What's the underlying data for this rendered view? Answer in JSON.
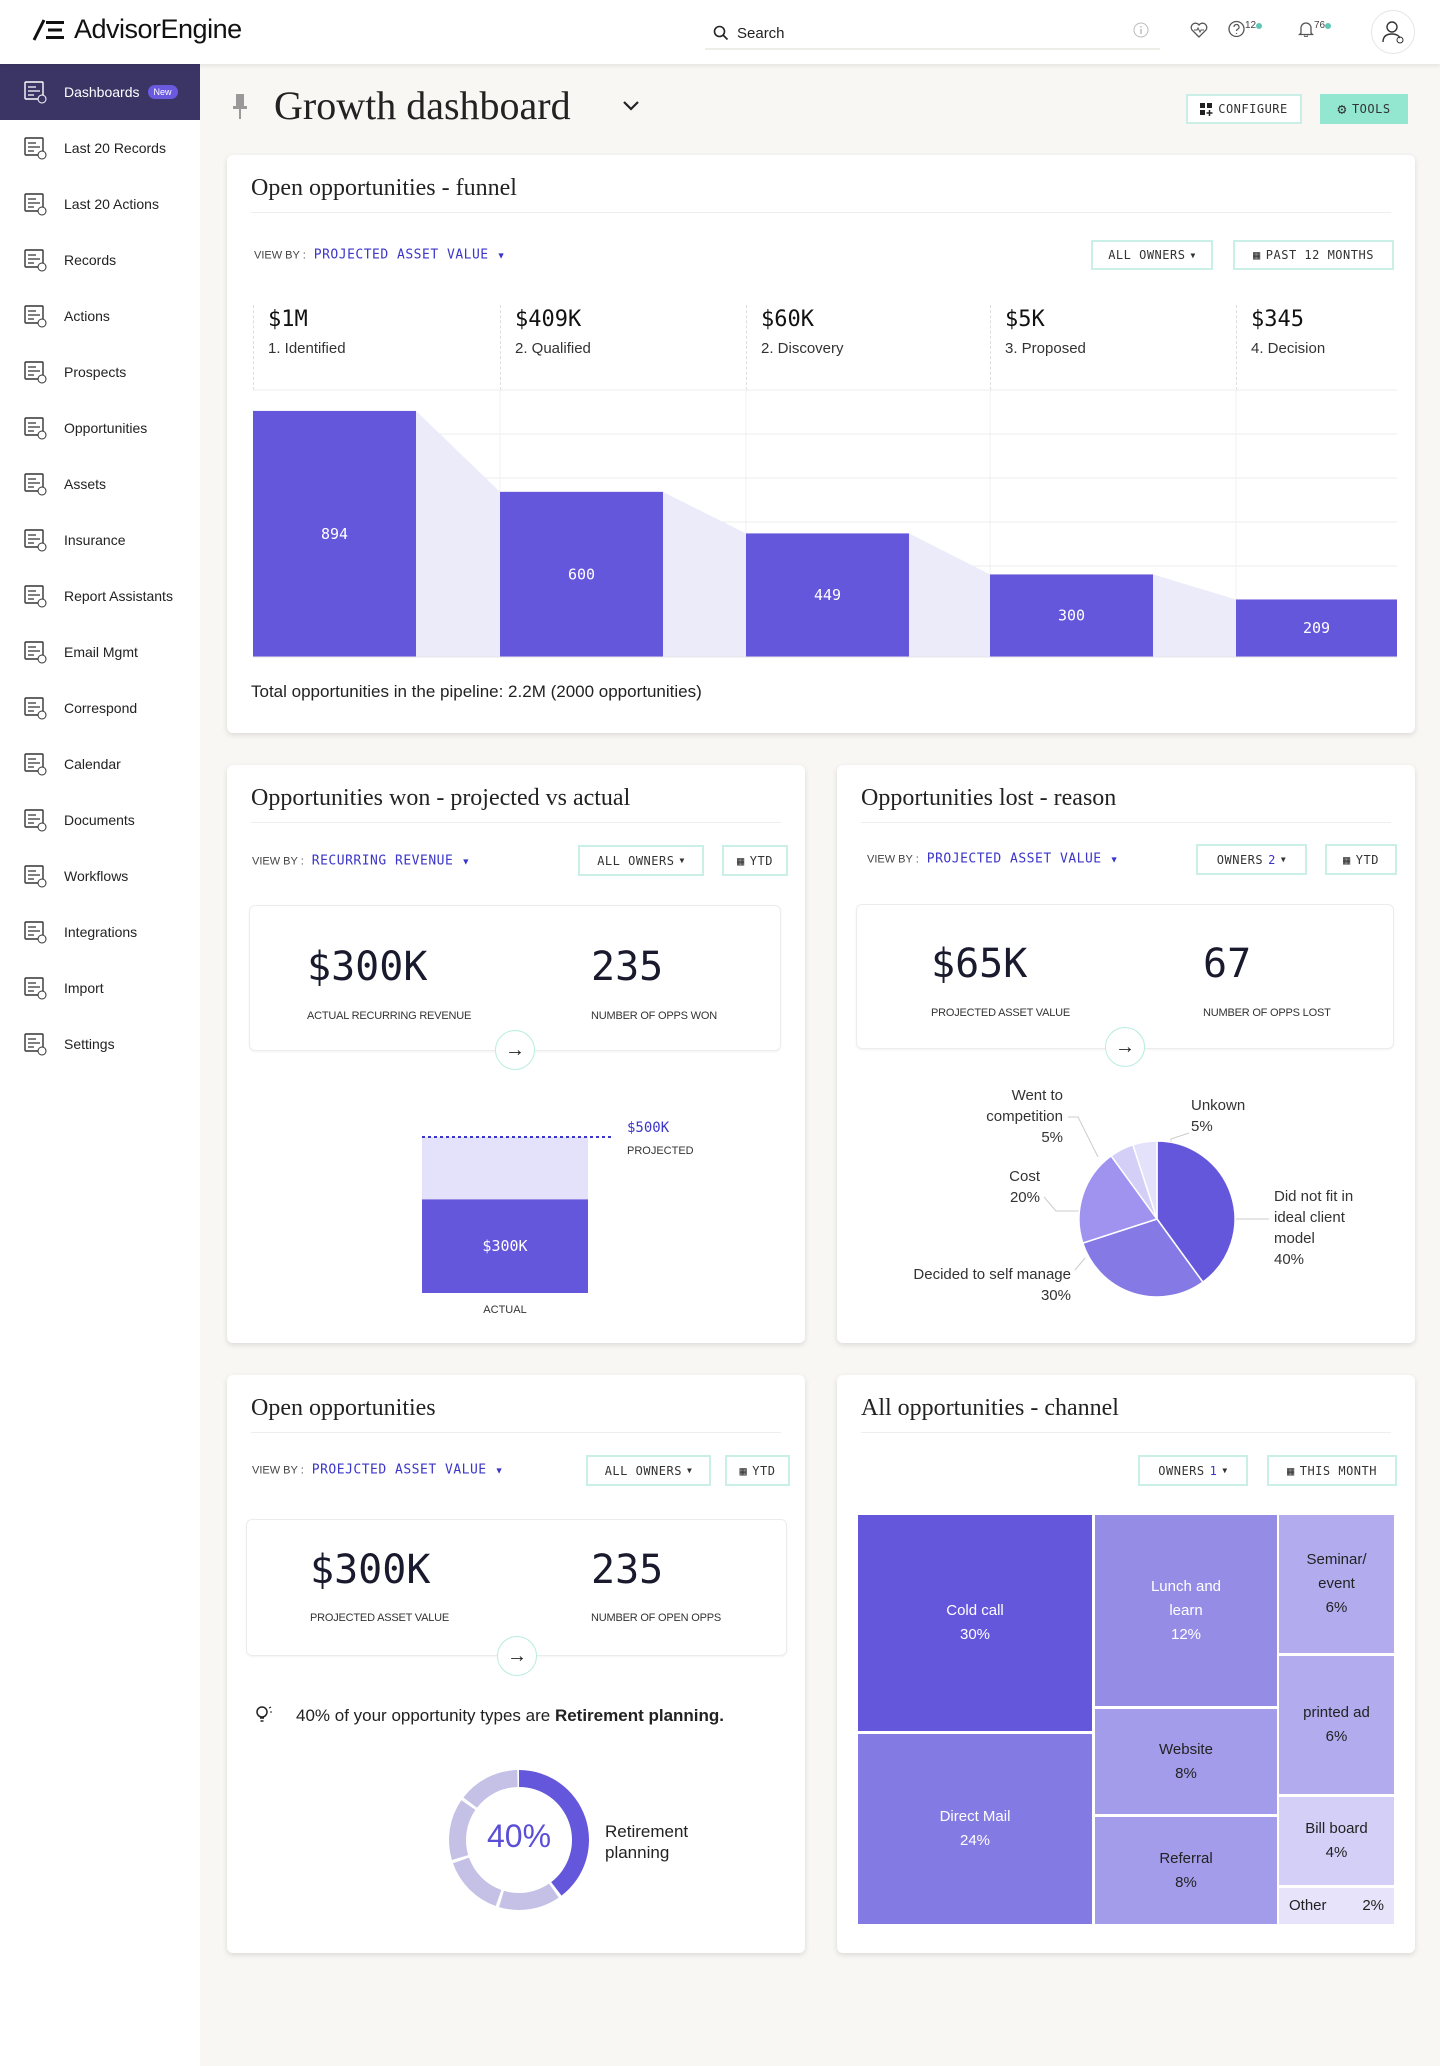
{
  "header": {
    "brand": "AdvisorEngine",
    "search_placeholder": "Search",
    "help_count": "12",
    "notification_count": "76"
  },
  "sidebar": {
    "items": [
      {
        "label": "Dashboards",
        "badge": "New",
        "icon": "dashboard-icon",
        "active": true
      },
      {
        "label": "Last 20 Records",
        "icon": "records-history-icon"
      },
      {
        "label": "Last 20 Actions",
        "icon": "actions-history-icon"
      },
      {
        "label": "Records",
        "icon": "records-icon"
      },
      {
        "label": "Actions",
        "icon": "check-icon"
      },
      {
        "label": "Prospects",
        "icon": "prospects-icon"
      },
      {
        "label": "Opportunities",
        "icon": "opportunities-icon"
      },
      {
        "label": "Assets",
        "icon": "assets-icon"
      },
      {
        "label": "Insurance",
        "icon": "umbrella-icon"
      },
      {
        "label": "Report Assistants",
        "icon": "report-icon"
      },
      {
        "label": "Email Mgmt",
        "icon": "email-icon"
      },
      {
        "label": "Correspond",
        "icon": "correspond-icon"
      },
      {
        "label": "Calendar",
        "icon": "calendar-icon"
      },
      {
        "label": "Documents",
        "icon": "document-icon"
      },
      {
        "label": "Workflows",
        "icon": "workflow-icon"
      },
      {
        "label": "Integrations",
        "icon": "integrations-icon"
      },
      {
        "label": "Import",
        "icon": "import-icon"
      },
      {
        "label": "Settings",
        "icon": "settings-icon"
      }
    ]
  },
  "page": {
    "title": "Growth dashboard",
    "configure": "CONFIGURE",
    "tools": "TOOLS"
  },
  "colors": {
    "primary": "#6557dc",
    "light": "#ecebfa",
    "accent": "#93e6cf",
    "link": "#3b35c9",
    "sidebar_active": "#3a3565"
  },
  "funnel": {
    "title": "Open opportunities - funnel",
    "view_by_label": "VIEW BY :",
    "view_by": "PROJECTED ASSET VALUE",
    "owners": "ALL OWNERS",
    "period": "PAST 12 MONTHS",
    "total": "Total opportunities in the pipeline: 2.2M (2000 opportunities)",
    "chart_data": {
      "type": "bar",
      "categories": [
        "1. Identified",
        "2. Qualified",
        "2. Discovery",
        "3. Proposed",
        "4. Decision"
      ],
      "amounts": [
        "$1M",
        "$409K",
        "$60K",
        "$5K",
        "$345"
      ],
      "values": [
        894,
        600,
        449,
        300,
        209
      ],
      "ylim": [
        0,
        970
      ]
    }
  },
  "won": {
    "title": "Opportunities won - projected vs actual",
    "view_by_label": "VIEW BY :",
    "view_by": "RECURRING REVENUE",
    "owners": "ALL OWNERS",
    "period": "YTD",
    "kpi1_value": "$300K",
    "kpi1_label": "ACTUAL RECURRING REVENUE",
    "kpi2_value": "235",
    "kpi2_label": "NUMBER OF OPPS WON",
    "chart_data": {
      "type": "bar",
      "actual": 300,
      "projected": 500,
      "actual_label": "$300K",
      "projected_label": "$500K",
      "projected_caption": "PROJECTED",
      "actual_caption": "ACTUAL"
    }
  },
  "lost": {
    "title": "Opportunities lost - reason",
    "view_by_label": "VIEW BY :",
    "view_by": "PROJECTED ASSET VALUE",
    "owners_label": "OWNERS",
    "owners_count": "2",
    "period": "YTD",
    "kpi1_value": "$65K",
    "kpi1_label": "PROJECTED ASSET VALUE",
    "kpi2_value": "67",
    "kpi2_label": "NUMBER OF OPPS LOST",
    "chart_data": {
      "type": "pie",
      "slices": [
        {
          "label": "Did not fit in ideal client model",
          "pct_label": "40%",
          "value": 40,
          "color": "#6557dc"
        },
        {
          "label": "Decided to self manage",
          "pct_label": "30%",
          "value": 30,
          "color": "#857ae5"
        },
        {
          "label": "Cost",
          "pct_label": "20%",
          "value": 20,
          "color": "#9f93ef"
        },
        {
          "label": "Went to competition",
          "pct_label": "5%",
          "value": 5,
          "color": "#d3cff6"
        },
        {
          "label": "Unkown",
          "pct_label": "5%",
          "value": 5,
          "color": "#e4e1fa"
        }
      ]
    }
  },
  "open": {
    "title": "Open opportunities",
    "view_by_label": "VIEW BY :",
    "view_by": "PROEJCTED ASSET VALUE",
    "owners": "ALL OWNERS",
    "period": "YTD",
    "kpi1_value": "$300K",
    "kpi1_label": "PROJECTED ASSET VALUE",
    "kpi2_value": "235",
    "kpi2_label": "NUMBER OF OPEN OPPS",
    "insight_pre": "40% of your opportunity types are ",
    "insight_bold": "Retirement planning.",
    "chart_data": {
      "type": "pie",
      "value": 40,
      "center_label": "40%",
      "label": "Retirement planning",
      "color": "#6557dc",
      "rest_color": "#c5c1e6"
    }
  },
  "channel": {
    "title": "All opportunities - channel",
    "owners_label": "OWNERS",
    "owners_count": "1",
    "period": "THIS MONTH",
    "chart_data": {
      "type": "treemap",
      "cells": [
        {
          "label": "Cold call",
          "pct": "30%",
          "color": "#6557dc"
        },
        {
          "label": "Direct Mail",
          "pct": "24%",
          "color": "#837ae3"
        },
        {
          "label": "Lunch and learn",
          "pct": "12%",
          "color": "#958ce6"
        },
        {
          "label": "Website",
          "pct": "8%",
          "color": "#a39cea"
        },
        {
          "label": "Referral",
          "pct": "8%",
          "color": "#a39cea"
        },
        {
          "label": "Seminar/ event",
          "pct": "6%",
          "color": "#b2abee"
        },
        {
          "label": "printed ad",
          "pct": "6%",
          "color": "#b2abee"
        },
        {
          "label": "Bill board",
          "pct": "4%",
          "color": "#d3cff6"
        },
        {
          "label": "Other",
          "pct": "2%",
          "color": "#e6e3fa"
        }
      ]
    }
  }
}
